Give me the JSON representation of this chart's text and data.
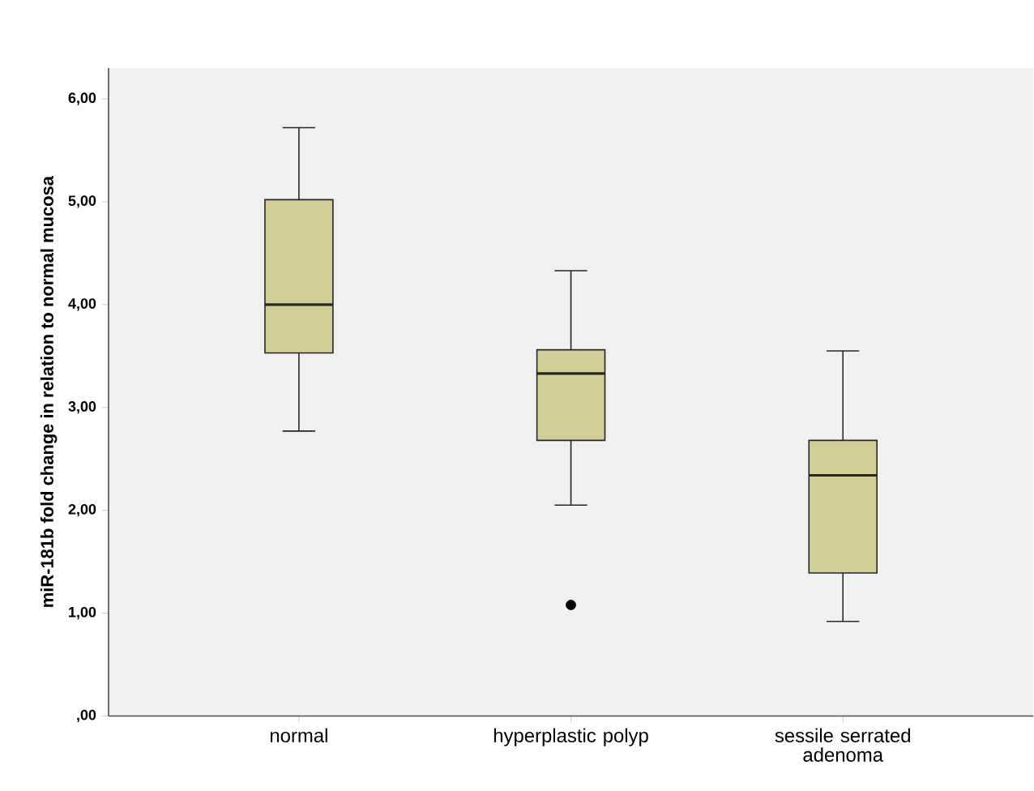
{
  "chart_data": {
    "type": "box",
    "ylabel": "miR-181b fold change in relation to normal mucosa",
    "categories": [
      "normal",
      "hyperplastic polyp",
      "sessile serrated adenoma"
    ],
    "color": "#d3cd96",
    "boxes": [
      {
        "low": 2.77,
        "q1": 3.53,
        "median": 4.0,
        "q3": 5.02,
        "high": 5.72
      },
      {
        "low": 2.05,
        "q1": 2.68,
        "median": 3.33,
        "q3": 3.56,
        "high": 4.33,
        "outliers": [
          1.08
        ]
      },
      {
        "low": 0.92,
        "q1": 1.39,
        "median": 2.34,
        "q3": 2.68,
        "high": 3.55
      }
    ],
    "ylim": [
      0,
      6.3
    ],
    "yticks": [
      {
        "value": 0,
        "label": ",00"
      },
      {
        "value": 1,
        "label": "1,00"
      },
      {
        "value": 2,
        "label": "2,00"
      },
      {
        "value": 3,
        "label": "3,00"
      },
      {
        "value": 4,
        "label": "4,00"
      },
      {
        "value": 5,
        "label": "5,00"
      },
      {
        "value": 6,
        "label": "6,00"
      }
    ],
    "grid": false
  }
}
